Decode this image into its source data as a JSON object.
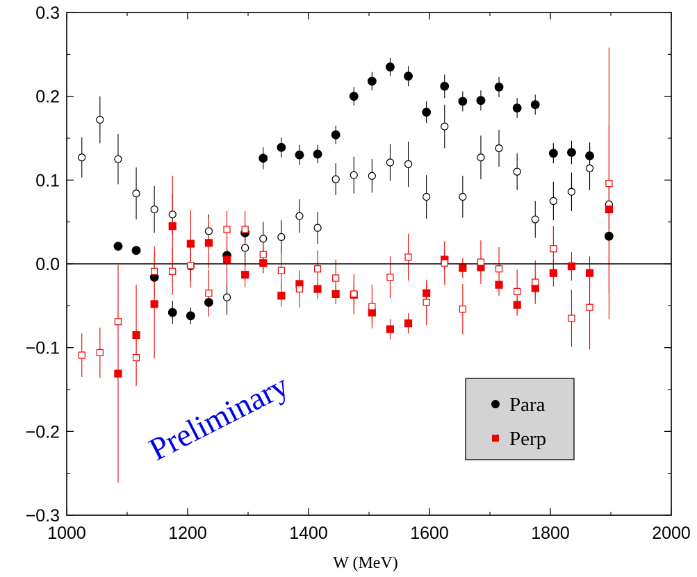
{
  "chart_data": {
    "type": "scatter",
    "xlabel": "W (MeV)",
    "ylabel": "",
    "xlim": [
      1000,
      2000
    ],
    "ylim": [
      -0.3,
      0.3
    ],
    "x_ticks": [
      {
        "value": 1000,
        "label": "1000"
      },
      {
        "value": 1200,
        "label": "1200"
      },
      {
        "value": 1400,
        "label": "1400"
      },
      {
        "value": 1600,
        "label": "1600"
      },
      {
        "value": 1800,
        "label": "1800"
      },
      {
        "value": 2000,
        "label": "2000"
      }
    ],
    "y_ticks": [
      {
        "value": 0.3,
        "label": "0.3"
      },
      {
        "value": 0.2,
        "label": "0.2"
      },
      {
        "value": 0.1,
        "label": "0.1"
      },
      {
        "value": 0.0,
        "label": "0.0"
      },
      {
        "value": -0.1,
        "label": "−0.1"
      },
      {
        "value": -0.2,
        "label": "−0.2"
      },
      {
        "value": -0.3,
        "label": "−0.3"
      }
    ],
    "grid": false,
    "zero_line": true,
    "annotation": {
      "text": "Preliminary",
      "color": "#0000ee"
    },
    "legend": {
      "position": "bottom-right",
      "entries": [
        {
          "label": "Para",
          "marker": "circle",
          "color": "#000000"
        },
        {
          "label": "Perp",
          "marker": "square",
          "color": "#ee0000"
        }
      ]
    },
    "series": [
      {
        "name": "Para",
        "marker": "circle",
        "filled": true,
        "color": "#000000",
        "points": [
          [
            1085,
            0.021,
            0.0
          ],
          [
            1115,
            0.016,
            0.0
          ],
          [
            1145,
            -0.016,
            0.0
          ],
          [
            1175,
            -0.058,
            0.014
          ],
          [
            1205,
            -0.062,
            0.01
          ],
          [
            1235,
            -0.046,
            0.008
          ],
          [
            1265,
            0.01,
            0.008
          ],
          [
            1295,
            0.037,
            0.01
          ],
          [
            1325,
            0.126,
            0.013
          ],
          [
            1355,
            0.139,
            0.012
          ],
          [
            1385,
            0.13,
            0.012
          ],
          [
            1415,
            0.131,
            0.011
          ],
          [
            1445,
            0.154,
            0.011
          ],
          [
            1475,
            0.2,
            0.011
          ],
          [
            1505,
            0.218,
            0.011
          ],
          [
            1535,
            0.235,
            0.011
          ],
          [
            1565,
            0.224,
            0.012
          ],
          [
            1595,
            0.181,
            0.013
          ],
          [
            1625,
            0.212,
            0.014
          ],
          [
            1655,
            0.194,
            0.012
          ],
          [
            1685,
            0.195,
            0.012
          ],
          [
            1715,
            0.211,
            0.012
          ],
          [
            1745,
            0.186,
            0.012
          ],
          [
            1775,
            0.19,
            0.012
          ],
          [
            1805,
            0.132,
            0.012
          ],
          [
            1835,
            0.133,
            0.014
          ],
          [
            1865,
            0.129,
            0.016
          ],
          [
            1897,
            0.033,
            0.0
          ]
        ]
      },
      {
        "name": "",
        "marker": "circle",
        "filled": false,
        "color": "#000000",
        "points": [
          [
            1025,
            0.127,
            0.024
          ],
          [
            1055,
            0.172,
            0.028
          ],
          [
            1085,
            0.125,
            0.03
          ],
          [
            1115,
            0.084,
            0.031
          ],
          [
            1145,
            0.065,
            0.028
          ],
          [
            1175,
            0.059,
            0.024
          ],
          [
            1205,
            -0.003,
            0.017
          ],
          [
            1235,
            0.039,
            0.02
          ],
          [
            1265,
            -0.04,
            0.021
          ],
          [
            1295,
            0.019,
            0.022
          ],
          [
            1325,
            0.03,
            0.02
          ],
          [
            1355,
            0.032,
            0.02
          ],
          [
            1385,
            0.057,
            0.02
          ],
          [
            1415,
            0.043,
            0.019
          ],
          [
            1445,
            0.101,
            0.019
          ],
          [
            1475,
            0.106,
            0.022
          ],
          [
            1505,
            0.105,
            0.02
          ],
          [
            1535,
            0.121,
            0.022
          ],
          [
            1565,
            0.119,
            0.027
          ],
          [
            1595,
            0.08,
            0.026
          ],
          [
            1625,
            0.164,
            0.026
          ],
          [
            1655,
            0.08,
            0.025
          ],
          [
            1685,
            0.127,
            0.026
          ],
          [
            1715,
            0.138,
            0.022
          ],
          [
            1745,
            0.11,
            0.022
          ],
          [
            1775,
            0.053,
            0.022
          ],
          [
            1805,
            0.075,
            0.023
          ],
          [
            1835,
            0.086,
            0.023
          ],
          [
            1865,
            0.114,
            0.026
          ],
          [
            1897,
            0.071,
            0.03
          ]
        ]
      },
      {
        "name": "Perp",
        "marker": "square",
        "filled": true,
        "color": "#ee0000",
        "points": [
          [
            1085,
            -0.131,
            0.13
          ],
          [
            1115,
            -0.085,
            0.06
          ],
          [
            1145,
            -0.048,
            0.065
          ],
          [
            1175,
            0.045,
            0.06
          ],
          [
            1205,
            0.024,
            0.04
          ],
          [
            1235,
            0.025,
            0.03
          ],
          [
            1265,
            0.005,
            0.03
          ],
          [
            1295,
            -0.013,
            0.015
          ],
          [
            1325,
            0.001,
            0.012
          ],
          [
            1355,
            -0.038,
            0.013
          ],
          [
            1385,
            -0.024,
            0.013
          ],
          [
            1415,
            -0.03,
            0.012
          ],
          [
            1445,
            -0.036,
            0.012
          ],
          [
            1475,
            -0.037,
            0.012
          ],
          [
            1505,
            -0.058,
            0.013
          ],
          [
            1535,
            -0.078,
            0.012
          ],
          [
            1565,
            -0.071,
            0.012
          ],
          [
            1595,
            -0.035,
            0.013
          ],
          [
            1625,
            0.005,
            0.012
          ],
          [
            1655,
            -0.005,
            0.012
          ],
          [
            1685,
            -0.004,
            0.012
          ],
          [
            1715,
            -0.025,
            0.013
          ],
          [
            1745,
            -0.049,
            0.013
          ],
          [
            1775,
            -0.029,
            0.014
          ],
          [
            1805,
            -0.011,
            0.016
          ],
          [
            1835,
            -0.003,
            0.017
          ],
          [
            1865,
            -0.011,
            0.02
          ],
          [
            1897,
            0.065,
            0.1
          ]
        ]
      },
      {
        "name": "",
        "marker": "square",
        "filled": false,
        "color": "#ee0000",
        "points": [
          [
            1025,
            -0.109,
            0.026
          ],
          [
            1055,
            -0.106,
            0.03
          ],
          [
            1085,
            -0.069,
            0.035
          ],
          [
            1115,
            -0.112,
            0.034
          ],
          [
            1145,
            -0.009,
            0.03
          ],
          [
            1175,
            -0.009,
            0.028
          ],
          [
            1205,
            -0.002,
            0.026
          ],
          [
            1235,
            -0.035,
            0.028
          ],
          [
            1265,
            0.041,
            0.022
          ],
          [
            1295,
            0.041,
            0.022
          ],
          [
            1325,
            0.011,
            0.022
          ],
          [
            1355,
            -0.008,
            0.022
          ],
          [
            1385,
            -0.03,
            0.022
          ],
          [
            1415,
            -0.006,
            0.022
          ],
          [
            1445,
            -0.017,
            0.022
          ],
          [
            1475,
            -0.036,
            0.024
          ],
          [
            1505,
            -0.051,
            0.026
          ],
          [
            1535,
            -0.016,
            0.025
          ],
          [
            1565,
            0.008,
            0.028
          ],
          [
            1595,
            -0.046,
            0.027
          ],
          [
            1625,
            0.001,
            0.026
          ],
          [
            1655,
            -0.054,
            0.03
          ],
          [
            1685,
            0.002,
            0.026
          ],
          [
            1715,
            -0.006,
            0.026
          ],
          [
            1745,
            -0.033,
            0.026
          ],
          [
            1775,
            -0.022,
            0.026
          ],
          [
            1805,
            0.018,
            0.027
          ],
          [
            1835,
            -0.065,
            0.034
          ],
          [
            1865,
            -0.052,
            0.05
          ],
          [
            1897,
            0.096,
            0.162
          ]
        ]
      }
    ]
  }
}
